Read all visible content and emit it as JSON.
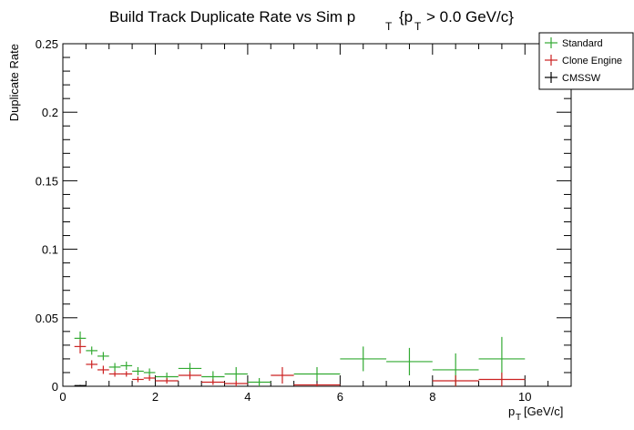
{
  "chart_data": {
    "type": "scatter",
    "title_main": "Build Track Duplicate Rate vs Sim p",
    "title_sub_T1": "T",
    "title_rest_open": "{p",
    "title_sub_T2": "T",
    "title_rest_close": "> 0.0 GeV/c}",
    "ylabel": "Duplicate Rate",
    "xlabel_p": "p",
    "xlabel_sub": "T",
    "xlabel_unit": "[GeV/c]",
    "xlim": [
      0,
      11
    ],
    "ylim": [
      0,
      0.25
    ],
    "x_ticks": [
      "0",
      "2",
      "4",
      "6",
      "8",
      "10"
    ],
    "y_ticks": [
      "0",
      "0.05",
      "0.1",
      "0.15",
      "0.2",
      "0.25"
    ],
    "legend_position": "top-right",
    "series": [
      {
        "name": "Standard",
        "color": "#33aa33",
        "points": [
          {
            "xlo": 0.25,
            "xhi": 0.5,
            "y": 0.035,
            "err": 0.005
          },
          {
            "xlo": 0.5,
            "xhi": 0.75,
            "y": 0.026,
            "err": 0.003
          },
          {
            "xlo": 0.75,
            "xhi": 1.0,
            "y": 0.022,
            "err": 0.003
          },
          {
            "xlo": 1.0,
            "xhi": 1.25,
            "y": 0.014,
            "err": 0.003
          },
          {
            "xlo": 1.25,
            "xhi": 1.5,
            "y": 0.015,
            "err": 0.003
          },
          {
            "xlo": 1.5,
            "xhi": 1.75,
            "y": 0.011,
            "err": 0.003
          },
          {
            "xlo": 1.75,
            "xhi": 2.0,
            "y": 0.01,
            "err": 0.003
          },
          {
            "xlo": 2.0,
            "xhi": 2.5,
            "y": 0.007,
            "err": 0.003
          },
          {
            "xlo": 2.5,
            "xhi": 3.0,
            "y": 0.013,
            "err": 0.004
          },
          {
            "xlo": 3.0,
            "xhi": 3.5,
            "y": 0.007,
            "err": 0.004
          },
          {
            "xlo": 3.5,
            "xhi": 4.0,
            "y": 0.009,
            "err": 0.005
          },
          {
            "xlo": 4.0,
            "xhi": 4.5,
            "y": 0.003,
            "err": 0.003
          },
          {
            "xlo": 5.0,
            "xhi": 6.0,
            "y": 0.009,
            "err": 0.005
          },
          {
            "xlo": 6.0,
            "xhi": 7.0,
            "y": 0.02,
            "err": 0.009
          },
          {
            "xlo": 7.0,
            "xhi": 8.0,
            "y": 0.018,
            "err": 0.01
          },
          {
            "xlo": 8.0,
            "xhi": 9.0,
            "y": 0.012,
            "err": 0.012
          },
          {
            "xlo": 9.0,
            "xhi": 10.0,
            "y": 0.02,
            "err": 0.016
          }
        ]
      },
      {
        "name": "Clone Engine",
        "color": "#cc2222",
        "points": [
          {
            "xlo": 0.25,
            "xhi": 0.5,
            "y": 0.029,
            "err": 0.005
          },
          {
            "xlo": 0.5,
            "xhi": 0.75,
            "y": 0.016,
            "err": 0.003
          },
          {
            "xlo": 0.75,
            "xhi": 1.0,
            "y": 0.012,
            "err": 0.003
          },
          {
            "xlo": 1.0,
            "xhi": 1.25,
            "y": 0.009,
            "err": 0.002
          },
          {
            "xlo": 1.25,
            "xhi": 1.5,
            "y": 0.009,
            "err": 0.002
          },
          {
            "xlo": 1.5,
            "xhi": 1.75,
            "y": 0.005,
            "err": 0.002
          },
          {
            "xlo": 1.75,
            "xhi": 2.0,
            "y": 0.006,
            "err": 0.002
          },
          {
            "xlo": 2.0,
            "xhi": 2.5,
            "y": 0.004,
            "err": 0.002
          },
          {
            "xlo": 2.5,
            "xhi": 3.0,
            "y": 0.008,
            "err": 0.003
          },
          {
            "xlo": 3.0,
            "xhi": 3.5,
            "y": 0.003,
            "err": 0.002
          },
          {
            "xlo": 3.5,
            "xhi": 4.0,
            "y": 0.002,
            "err": 0.002
          },
          {
            "xlo": 4.5,
            "xhi": 5.0,
            "y": 0.008,
            "err": 0.006
          },
          {
            "xlo": 5.0,
            "xhi": 6.0,
            "y": 0.001,
            "err": 0.001
          },
          {
            "xlo": 8.0,
            "xhi": 9.0,
            "y": 0.004,
            "err": 0.004
          },
          {
            "xlo": 9.0,
            "xhi": 10.0,
            "y": 0.005,
            "err": 0.005
          }
        ]
      },
      {
        "name": "CMSSW",
        "color": "#000000",
        "points": [
          {
            "xlo": 0.25,
            "xhi": 0.5,
            "y": 0.0005,
            "err": 0.0005
          }
        ]
      }
    ]
  }
}
